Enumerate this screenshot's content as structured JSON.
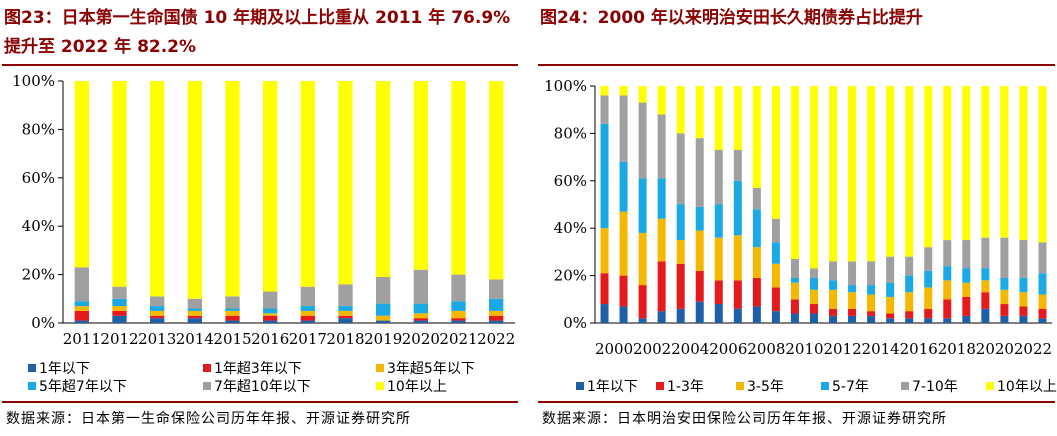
{
  "left": {
    "title": "图23：日本第一生命国债 10 年期及以上比重从 2011 年 76.9%提升至 2022 年 82.2%",
    "source": "数据来源：日本第一生命保险公司历年年报、开源证券研究所",
    "chart_data": {
      "type": "bar",
      "stacked": true,
      "title": "",
      "ylim": [
        0,
        100
      ],
      "yticks": [
        "0%",
        "20%",
        "40%",
        "60%",
        "80%",
        "100%"
      ],
      "categories": [
        "2011",
        "2012",
        "2013",
        "2014",
        "2015",
        "2016",
        "2017",
        "2018",
        "2019",
        "2020",
        "2021",
        "2022"
      ],
      "series": [
        {
          "name": "1年以下",
          "color": "#1F5FA8",
          "values": [
            1,
            3,
            2,
            2,
            1,
            1,
            1,
            2,
            1,
            1,
            1,
            1
          ]
        },
        {
          "name": "1年超3年以下",
          "color": "#E41A1C",
          "values": [
            4,
            2,
            1,
            1,
            2,
            2,
            2,
            1,
            0,
            1,
            1,
            2
          ]
        },
        {
          "name": "3年超5年以下",
          "color": "#F5B800",
          "values": [
            2,
            2,
            2,
            2,
            2,
            1,
            2,
            2,
            2,
            2,
            3,
            2
          ]
        },
        {
          "name": "5年超7年以下",
          "color": "#1AA9E5",
          "values": [
            2,
            3,
            2,
            1,
            1,
            2,
            2,
            2,
            5,
            4,
            4,
            5
          ]
        },
        {
          "name": "7年超10年以下",
          "color": "#A0A0A0",
          "values": [
            14,
            5,
            4,
            4,
            5,
            7,
            8,
            9,
            11,
            14,
            11,
            8
          ]
        },
        {
          "name": "10年以上",
          "color": "#FFFF00",
          "values": [
            77,
            85,
            89,
            90,
            89,
            87,
            85,
            84,
            81,
            78,
            80,
            82
          ]
        }
      ]
    }
  },
  "right": {
    "title": "图24：2000 年以来明治安田长久期债券占比提升",
    "source": "数据来源：日本明治安田保险公司历年年报、开源证券研究所",
    "chart_data": {
      "type": "bar",
      "stacked": true,
      "title": "",
      "ylim": [
        0,
        100
      ],
      "yticks": [
        "0%",
        "20%",
        "40%",
        "60%",
        "80%",
        "100%"
      ],
      "xtick_labels": [
        "2000",
        "2002",
        "2004",
        "2006",
        "2008",
        "2010",
        "2012",
        "2014",
        "2016",
        "2018",
        "2020",
        "2022"
      ],
      "categories": [
        "2000",
        "2001",
        "2002",
        "2003",
        "2004",
        "2005",
        "2006",
        "2007",
        "2008",
        "2009",
        "2010",
        "2011",
        "2012",
        "2013",
        "2014",
        "2015",
        "2016",
        "2017",
        "2018",
        "2019",
        "2020",
        "2021",
        "2022",
        "2023"
      ],
      "series": [
        {
          "name": "1年以下",
          "color": "#1F5FA8",
          "values": [
            8,
            7,
            2,
            5,
            6,
            9,
            8,
            6,
            7,
            5,
            4,
            4,
            3,
            3,
            3,
            2,
            2,
            2,
            2,
            3,
            6,
            3,
            3,
            2
          ]
        },
        {
          "name": "1-3年",
          "color": "#E41A1C",
          "values": [
            13,
            13,
            14,
            21,
            19,
            13,
            10,
            12,
            12,
            10,
            6,
            4,
            3,
            3,
            2,
            2,
            3,
            4,
            8,
            8,
            7,
            5,
            4,
            4
          ]
        },
        {
          "name": "3-5年",
          "color": "#F5B800",
          "values": [
            19,
            27,
            22,
            18,
            10,
            17,
            18,
            19,
            13,
            10,
            7,
            6,
            8,
            7,
            7,
            7,
            8,
            9,
            8,
            6,
            5,
            6,
            6,
            6
          ]
        },
        {
          "name": "5-7年",
          "color": "#1AA9E5",
          "values": [
            44,
            21,
            23,
            17,
            15,
            10,
            14,
            23,
            16,
            9,
            2,
            5,
            4,
            3,
            4,
            6,
            7,
            7,
            6,
            6,
            5,
            5,
            6,
            9
          ]
        },
        {
          "name": "7-10年",
          "color": "#A0A0A0",
          "values": [
            12,
            28,
            32,
            27,
            30,
            29,
            23,
            13,
            9,
            10,
            8,
            4,
            8,
            10,
            10,
            11,
            8,
            10,
            11,
            12,
            13,
            17,
            16,
            13
          ]
        },
        {
          "name": "10年以上",
          "color": "#FFFF00",
          "values": [
            4,
            4,
            7,
            12,
            20,
            22,
            27,
            27,
            43,
            56,
            73,
            77,
            74,
            74,
            74,
            72,
            72,
            68,
            65,
            65,
            64,
            64,
            65,
            66
          ]
        }
      ]
    }
  }
}
